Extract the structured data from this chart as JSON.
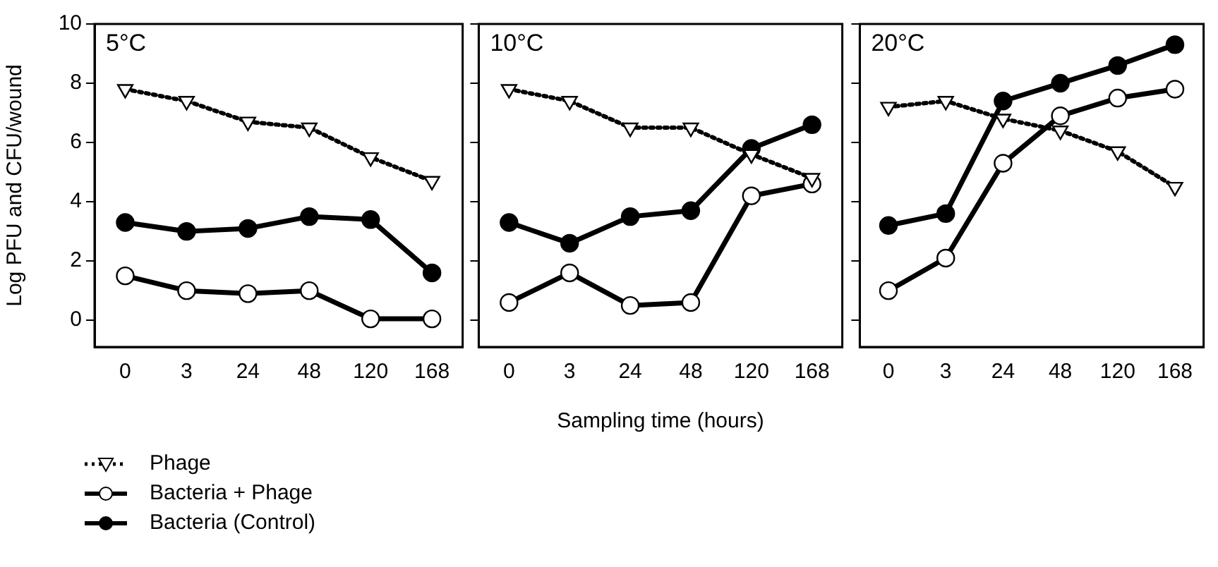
{
  "chart_data": [
    {
      "type": "line",
      "title": "5°C",
      "ylabel": "Log PFU and CFU/wound",
      "categories": [
        "0",
        "3",
        "24",
        "48",
        "120",
        "168"
      ],
      "ylim": [
        -0.9,
        10
      ],
      "yticks": [
        0,
        2,
        4,
        6,
        8,
        10
      ],
      "grid": false,
      "legend": "bottom",
      "series": [
        {
          "name": "Phage",
          "color": "#000000",
          "marker": "triangle",
          "line_style": "dotted",
          "values": [
            7.8,
            7.4,
            6.7,
            6.5,
            5.5,
            4.7
          ]
        },
        {
          "name": "Bacteria + Phage",
          "color": "#000000",
          "marker": "circle",
          "line_style": "solid",
          "values": [
            1.5,
            1.0,
            0.9,
            1.0,
            0.05,
            0.05
          ]
        },
        {
          "name": "Bacteria (Control)",
          "color": "#000000",
          "marker": "circle",
          "line_style": "solid",
          "values": [
            3.3,
            3.0,
            3.1,
            3.5,
            3.4,
            1.6
          ]
        }
      ]
    },
    {
      "type": "line",
      "title": "10°C",
      "xlabel": "Sampling time (hours)",
      "categories": [
        "0",
        "3",
        "24",
        "48",
        "120",
        "168"
      ],
      "ylim": [
        -0.9,
        10
      ],
      "yticks": [
        0,
        2,
        4,
        6,
        8,
        10
      ],
      "grid": false,
      "tick_labels": "x",
      "series": [
        {
          "color": "#000000",
          "marker": "triangle",
          "line_style": "dotted",
          "values": [
            7.8,
            7.4,
            6.5,
            6.5,
            5.6,
            4.8
          ]
        },
        {
          "color": "#000000",
          "marker": "circle",
          "line_style": "solid",
          "values": [
            0.6,
            1.6,
            0.5,
            0.6,
            4.2,
            4.6
          ]
        },
        {
          "color": "#000000",
          "marker": "circle",
          "line_style": "solid",
          "values": [
            3.3,
            2.6,
            3.5,
            3.7,
            5.8,
            6.6
          ]
        }
      ]
    },
    {
      "type": "line",
      "title": "20°C",
      "categories": [
        "0",
        "3",
        "24",
        "48",
        "120",
        "168"
      ],
      "ylim": [
        -0.9,
        10
      ],
      "yticks": [
        0,
        2,
        4,
        6,
        8,
        10
      ],
      "grid": false,
      "tick_labels": "x",
      "series": [
        {
          "color": "#000000",
          "marker": "triangle",
          "line_style": "dotted",
          "values": [
            7.2,
            7.4,
            6.8,
            6.4,
            5.7,
            4.5
          ]
        },
        {
          "color": "#000000",
          "marker": "circle",
          "line_style": "solid",
          "values": [
            1.0,
            2.1,
            5.3,
            6.9,
            7.5,
            7.8
          ]
        },
        {
          "color": "#000000",
          "marker": "circle",
          "line_style": "solid",
          "values": [
            3.2,
            3.6,
            7.4,
            8.0,
            8.6,
            9.3
          ]
        }
      ]
    }
  ]
}
